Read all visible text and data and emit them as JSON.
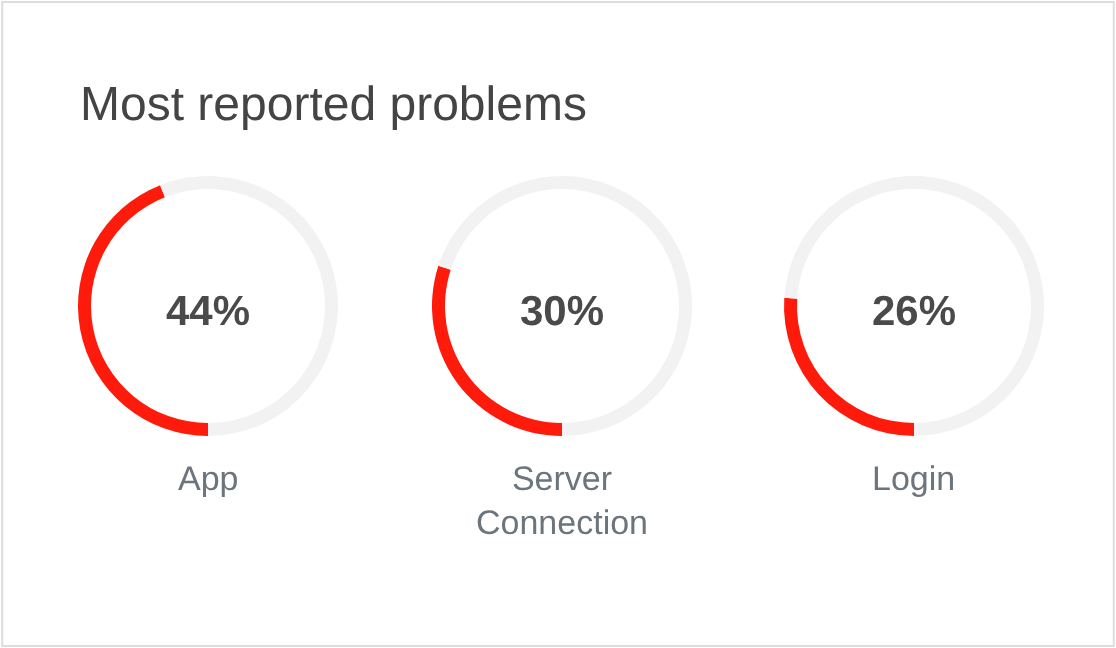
{
  "chart_data": [
    {
      "type": "donut",
      "title": "Most reported problems",
      "categories": [
        "App",
        null
      ],
      "values": [
        44,
        56
      ],
      "colors": [
        "#fe1b0c",
        "#f2f2f2"
      ],
      "value_labels": [
        "44%",
        null
      ]
    },
    {
      "type": "donut",
      "categories": [
        "Server Connection",
        null
      ],
      "values": [
        30,
        70
      ],
      "colors": [
        "#fe1b0c",
        "#f2f2f2"
      ],
      "value_labels": [
        "30%",
        null
      ]
    },
    {
      "type": "donut",
      "categories": [
        "Login",
        null
      ],
      "values": [
        26,
        74
      ],
      "colors": [
        "#fe1b0c",
        "#f2f2f2"
      ],
      "value_labels": [
        "26%",
        null
      ]
    }
  ]
}
